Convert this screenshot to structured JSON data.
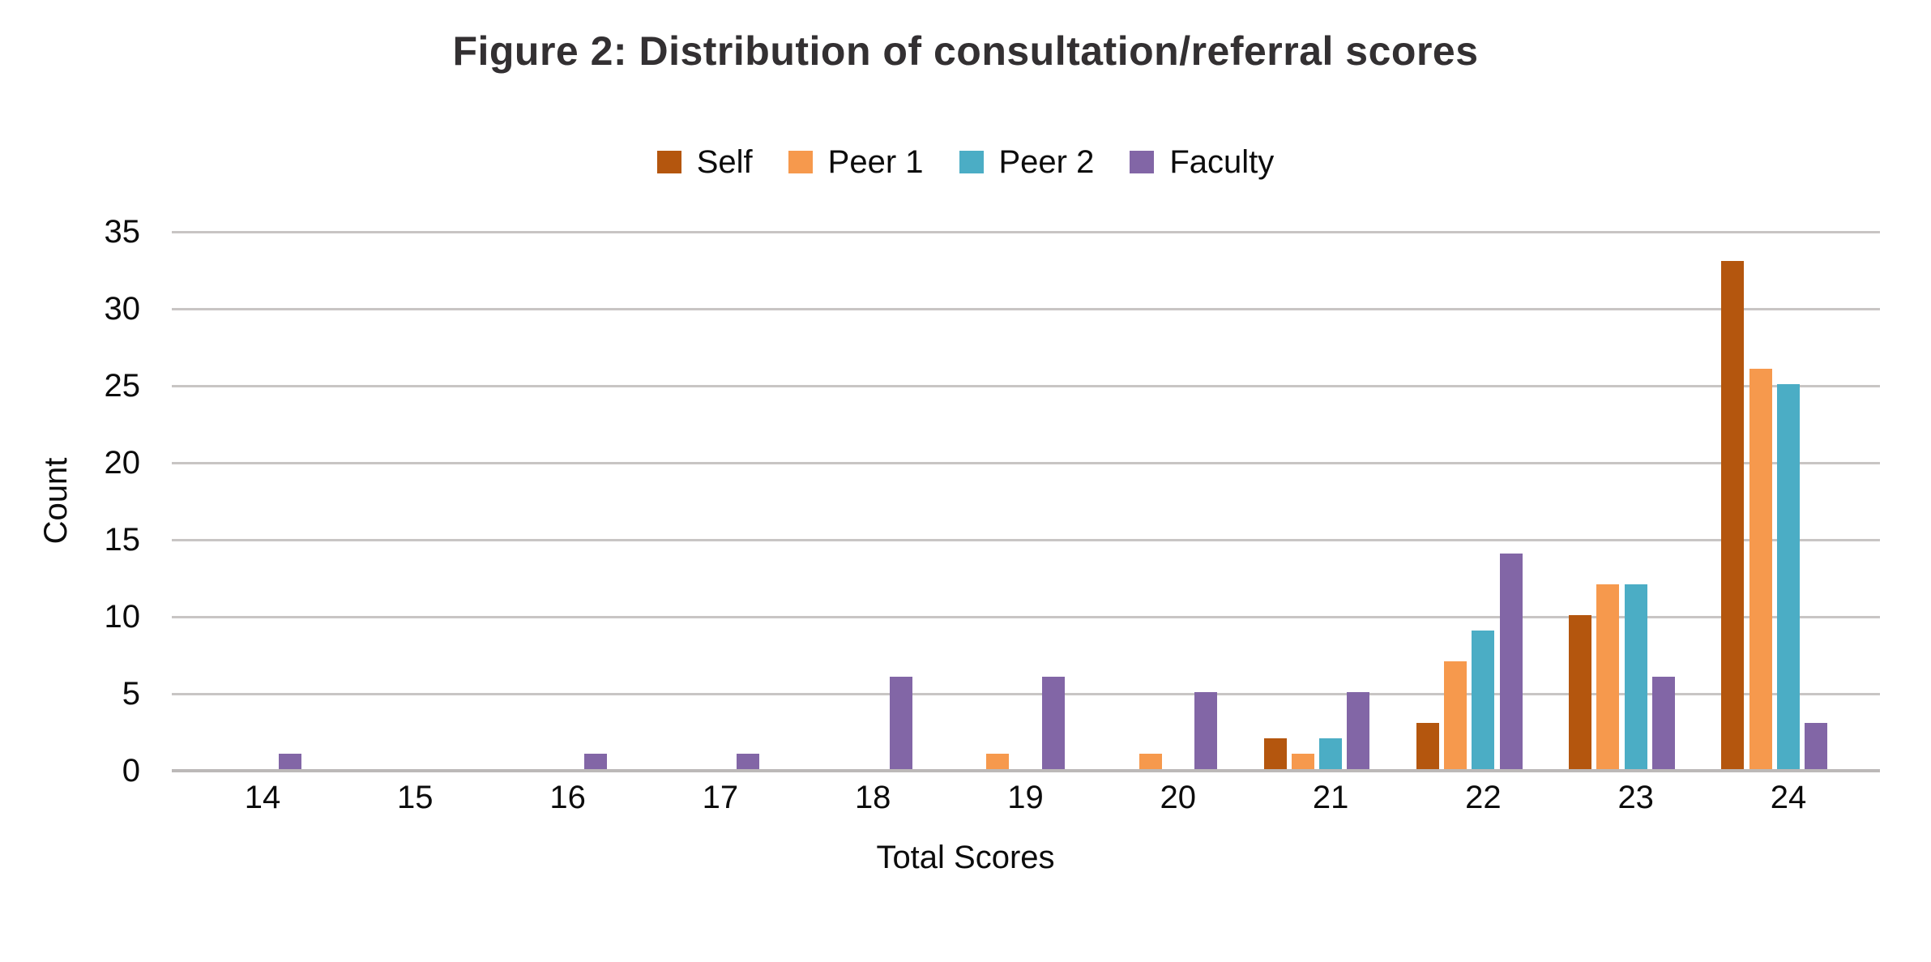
{
  "chart_data": {
    "type": "bar",
    "title": "Figure 2: Distribution of consultation/referral scores",
    "xlabel": "Total Scores",
    "ylabel": "Count",
    "categories": [
      14,
      15,
      16,
      17,
      18,
      19,
      20,
      21,
      22,
      23,
      24
    ],
    "series": [
      {
        "name": "Self",
        "color": "#b4560e",
        "values": [
          0,
          0,
          0,
          0,
          0,
          0,
          0,
          2,
          3,
          10,
          33
        ]
      },
      {
        "name": "Peer 1",
        "color": "#f6994d",
        "values": [
          0,
          0,
          0,
          0,
          0,
          1,
          1,
          1,
          7,
          12,
          26
        ]
      },
      {
        "name": "Peer 2",
        "color": "#4badc5",
        "values": [
          0,
          0,
          0,
          0,
          0,
          0,
          0,
          2,
          9,
          12,
          25
        ]
      },
      {
        "name": "Faculty",
        "color": "#8266a6",
        "values": [
          1,
          0,
          1,
          1,
          6,
          6,
          5,
          5,
          14,
          6,
          3
        ]
      }
    ],
    "ylim": [
      0,
      35
    ],
    "ytick_step": 5,
    "grid": true,
    "legend_position": "top-center",
    "colors": {
      "background": "#ffffff",
      "gridline": "#c8c5c4",
      "baseline": "#bcb9b8",
      "title_text": "#333032",
      "axis_text": "#0c0c0c"
    }
  }
}
